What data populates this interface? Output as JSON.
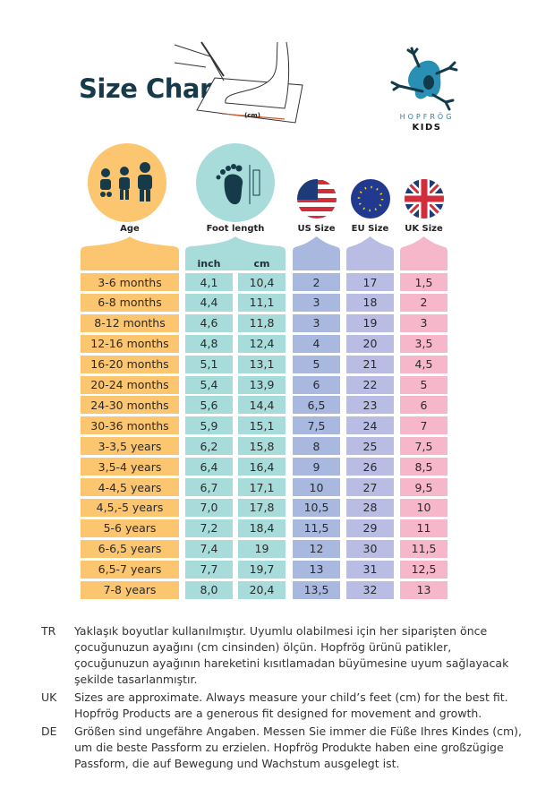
{
  "header": {
    "title": "Size Chart",
    "measure_label": "(cm)",
    "brand": "HOPFRÖG",
    "brand_sub": "KIDS"
  },
  "columns": {
    "age": "Age",
    "foot": "Foot length",
    "us": "US Size",
    "eu": "EU Size",
    "uk": "UK Size",
    "inch": "inch",
    "cm": "cm"
  },
  "colors": {
    "age": "#fcc56f",
    "foot": "#a8dcda",
    "us": "#a9b8df",
    "eu": "#b9bde4",
    "uk": "#f5b7c9",
    "title": "#163a4a"
  },
  "rows": [
    {
      "age": "3-6 months",
      "inch": "4,1",
      "cm": "10,4",
      "us": "2",
      "eu": "17",
      "uk": "1,5"
    },
    {
      "age": "6-8 months",
      "inch": "4,4",
      "cm": "11,1",
      "us": "3",
      "eu": "18",
      "uk": "2"
    },
    {
      "age": "8-12 months",
      "inch": "4,6",
      "cm": "11,8",
      "us": "3",
      "eu": "19",
      "uk": "3"
    },
    {
      "age": "12-16 months",
      "inch": "4,8",
      "cm": "12,4",
      "us": "4",
      "eu": "20",
      "uk": "3,5"
    },
    {
      "age": "16-20 months",
      "inch": "5,1",
      "cm": "13,1",
      "us": "5",
      "eu": "21",
      "uk": "4,5"
    },
    {
      "age": "20-24 months",
      "inch": "5,4",
      "cm": "13,9",
      "us": "6",
      "eu": "22",
      "uk": "5"
    },
    {
      "age": "24-30 months",
      "inch": "5,6",
      "cm": "14,4",
      "us": "6,5",
      "eu": "23",
      "uk": "6"
    },
    {
      "age": "30-36 months",
      "inch": "5,9",
      "cm": "15,1",
      "us": "7,5",
      "eu": "24",
      "uk": "7"
    },
    {
      "age": "3-3,5 years",
      "inch": "6,2",
      "cm": "15,8",
      "us": "8",
      "eu": "25",
      "uk": "7,5"
    },
    {
      "age": "3,5-4 years",
      "inch": "6,4",
      "cm": "16,4",
      "us": "9",
      "eu": "26",
      "uk": "8,5"
    },
    {
      "age": "4-4,5 years",
      "inch": "6,7",
      "cm": "17,1",
      "us": "10",
      "eu": "27",
      "uk": "9,5"
    },
    {
      "age": "4,5,-5 years",
      "inch": "7,0",
      "cm": "17,8",
      "us": "10,5",
      "eu": "28",
      "uk": "10"
    },
    {
      "age": "5-6 years",
      "inch": "7,2",
      "cm": "18,4",
      "us": "11,5",
      "eu": "29",
      "uk": "11"
    },
    {
      "age": "6-6,5 years",
      "inch": "7,4",
      "cm": "19",
      "us": "12",
      "eu": "30",
      "uk": "11,5"
    },
    {
      "age": "6,5-7 years",
      "inch": "7,7",
      "cm": "19,7",
      "us": "13",
      "eu": "31",
      "uk": "12,5"
    },
    {
      "age": "7-8 years",
      "inch": "8,0",
      "cm": "20,4",
      "us": "13,5",
      "eu": "32",
      "uk": "13"
    }
  ],
  "notes": [
    {
      "code": "TR",
      "text": "Yaklaşık boyutlar kullanılmıştır. Uyumlu olabilmesi için her siparişten önce çocuğunuzun ayağını (cm cinsinden) ölçün. Hopfrög ürünü patikler, çocuğunuzun ayağının hareketini kısıtlamadan büyümesine uyum sağlayacak şekilde tasarlanmıştır."
    },
    {
      "code": "UK",
      "text": "Sizes are approximate. Always measure your child’s feet (cm) for the best fit. Hopfrög Products are a generous fit designed for movement and growth."
    },
    {
      "code": "DE",
      "text": "Größen sind ungefähre Angaben. Messen Sie immer die Füße Ihres Kindes (cm), um die beste Passform zu erzielen. Hopfrög Produkte haben eine großzügige Passform, die auf Bewegung und Wachstum ausgelegt ist."
    }
  ]
}
